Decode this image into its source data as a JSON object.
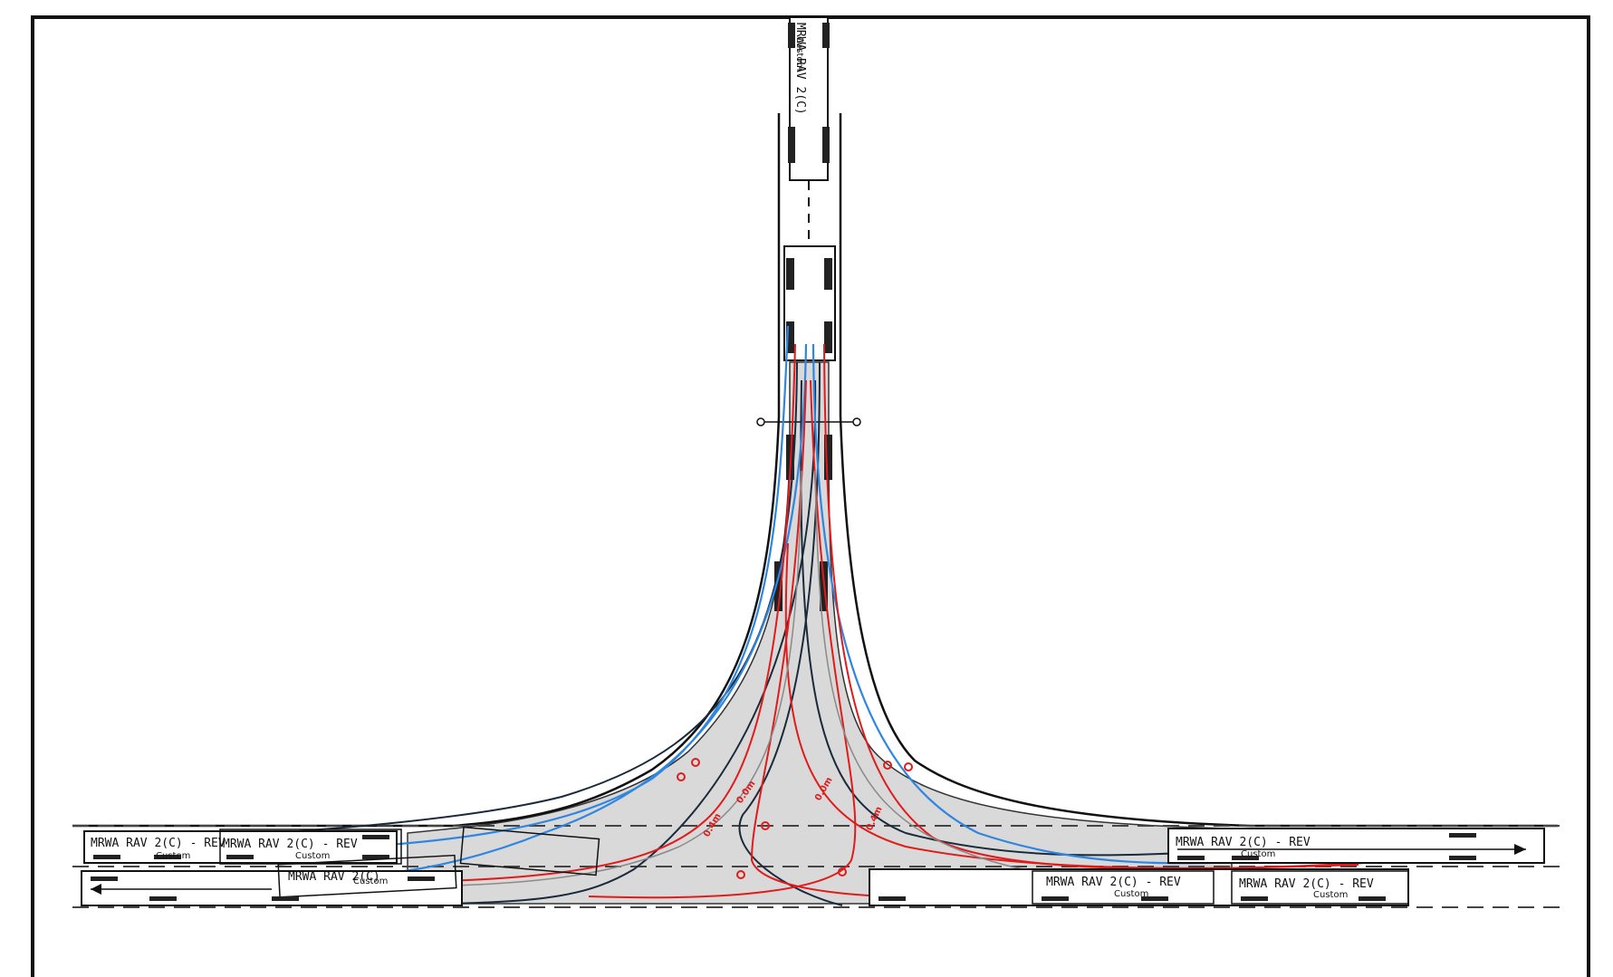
{
  "drawing": {
    "colors": {
      "frame": "#111111",
      "envelope_fill": "#d9d9d9",
      "path_dark": "#1a2a3a",
      "path_blue": "#2f86e0",
      "path_red": "#e01b1b",
      "path_grey": "#8a8a8a",
      "lane_line": "#444444"
    },
    "vehicle_labels": [
      {
        "text": "MRWA RAV 2(C) - REV",
        "sub": "Custom"
      },
      {
        "text": "MRWA RAV 2(C) - REV",
        "sub": "Custom"
      },
      {
        "text": "MRWA RAV 2(C)",
        "sub": "Custom"
      },
      {
        "text": "MRWA RAV 2(C) - REV",
        "sub": "Custom"
      },
      {
        "text": "MRWA RAV 2(C) - REV",
        "sub": "Custom"
      },
      {
        "text": "MRWA RAV 2(C) - REV",
        "sub": "Custom"
      },
      {
        "text": "MRWA RAV 2(C)",
        "sub": "Custom"
      }
    ],
    "clearance_labels": [
      "0.4m",
      "0.0m",
      "0.0m",
      "0.4m"
    ]
  }
}
